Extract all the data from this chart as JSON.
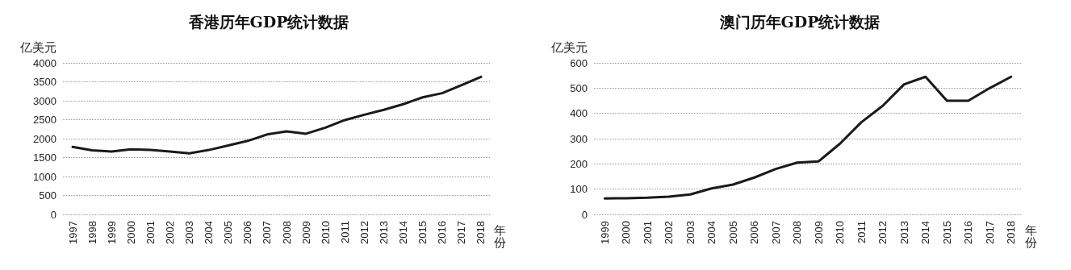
{
  "chart_data": [
    {
      "type": "line",
      "title": "香港历年GDP统计数据",
      "ylabel": "亿美元",
      "xlabel": "年份",
      "categories": [
        "1997",
        "1998",
        "1999",
        "2000",
        "2001",
        "2002",
        "2003",
        "2004",
        "2005",
        "2006",
        "2007",
        "2008",
        "2009",
        "2010",
        "2011",
        "2012",
        "2013",
        "2014",
        "2015",
        "2016",
        "2017",
        "2018"
      ],
      "series": [
        {
          "color": "#1a1a1a",
          "values": [
            1780,
            1690,
            1660,
            1720,
            1700,
            1660,
            1610,
            1700,
            1820,
            1940,
            2110,
            2190,
            2130,
            2290,
            2490,
            2630,
            2760,
            2910,
            3090,
            3200,
            3410,
            3630
          ]
        }
      ],
      "ylim": [
        0,
        4000
      ],
      "yticks": [
        0,
        500,
        1000,
        1500,
        2000,
        2500,
        3000,
        3500,
        4000
      ],
      "grid": "y",
      "marker": "none",
      "line_style": "solid"
    },
    {
      "type": "line",
      "title": "澳门历年GDP统计数据",
      "ylabel": "亿美元",
      "xlabel": "年份",
      "categories": [
        "1999",
        "2000",
        "2001",
        "2002",
        "2003",
        "2004",
        "2005",
        "2006",
        "2007",
        "2008",
        "2009",
        "2010",
        "2011",
        "2012",
        "2013",
        "2014",
        "2015",
        "2016",
        "2017",
        "2018"
      ],
      "series": [
        {
          "color": "#1a1a1a",
          "values": [
            63,
            64,
            66,
            70,
            79,
            103,
            118,
            146,
            180,
            205,
            210,
            280,
            365,
            430,
            515,
            545,
            450,
            450,
            500,
            545
          ]
        }
      ],
      "ylim": [
        0,
        600
      ],
      "yticks": [
        0,
        100,
        200,
        300,
        400,
        500,
        600
      ],
      "grid": "y",
      "marker": "none",
      "line_style": "solid"
    }
  ]
}
